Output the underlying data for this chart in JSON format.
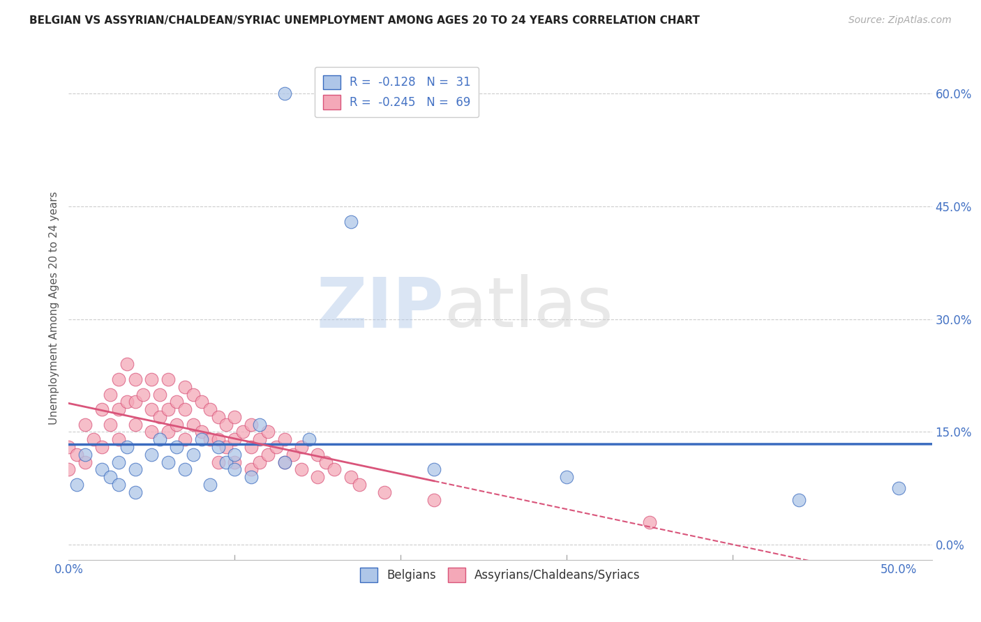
{
  "title": "BELGIAN VS ASSYRIAN/CHALDEAN/SYRIAC UNEMPLOYMENT AMONG AGES 20 TO 24 YEARS CORRELATION CHART",
  "source": "Source: ZipAtlas.com",
  "ylabel": "Unemployment Among Ages 20 to 24 years",
  "legend_labels": [
    "Belgians",
    "Assyrians/Chaldeans/Syriacs"
  ],
  "r_belgian": -0.128,
  "n_belgian": 31,
  "r_assyrian": -0.245,
  "n_assyrian": 69,
  "belgian_color": "#aec6e8",
  "assyrian_color": "#f4a8b8",
  "trend_belgian_color": "#3a6bbf",
  "trend_assyrian_color": "#d9547a",
  "background_color": "#ffffff",
  "xlim": [
    0.0,
    0.52
  ],
  "ylim": [
    -0.02,
    0.65
  ],
  "xticks": [
    0.0,
    0.5
  ],
  "xtick_labels": [
    "0.0%",
    "50.0%"
  ],
  "yticks": [
    0.0,
    0.15,
    0.3,
    0.45,
    0.6
  ],
  "ytick_labels": [
    "0.0%",
    "15.0%",
    "30.0%",
    "45.0%",
    "60.0%"
  ],
  "belgian_x": [
    0.005,
    0.01,
    0.02,
    0.025,
    0.03,
    0.03,
    0.035,
    0.04,
    0.04,
    0.05,
    0.055,
    0.06,
    0.065,
    0.07,
    0.075,
    0.08,
    0.085,
    0.09,
    0.095,
    0.1,
    0.1,
    0.11,
    0.115,
    0.13,
    0.13,
    0.145,
    0.17,
    0.22,
    0.3,
    0.44,
    0.5
  ],
  "belgian_y": [
    0.08,
    0.12,
    0.1,
    0.09,
    0.11,
    0.08,
    0.13,
    0.1,
    0.07,
    0.12,
    0.14,
    0.11,
    0.13,
    0.1,
    0.12,
    0.14,
    0.08,
    0.13,
    0.11,
    0.12,
    0.1,
    0.09,
    0.16,
    0.6,
    0.11,
    0.14,
    0.43,
    0.1,
    0.09,
    0.06,
    0.075
  ],
  "assyrian_x": [
    0.0,
    0.0,
    0.005,
    0.01,
    0.01,
    0.015,
    0.02,
    0.02,
    0.025,
    0.025,
    0.03,
    0.03,
    0.03,
    0.035,
    0.035,
    0.04,
    0.04,
    0.04,
    0.045,
    0.05,
    0.05,
    0.05,
    0.055,
    0.055,
    0.06,
    0.06,
    0.06,
    0.065,
    0.065,
    0.07,
    0.07,
    0.07,
    0.075,
    0.075,
    0.08,
    0.08,
    0.085,
    0.085,
    0.09,
    0.09,
    0.09,
    0.095,
    0.095,
    0.1,
    0.1,
    0.1,
    0.105,
    0.11,
    0.11,
    0.11,
    0.115,
    0.115,
    0.12,
    0.12,
    0.125,
    0.13,
    0.13,
    0.135,
    0.14,
    0.14,
    0.15,
    0.15,
    0.155,
    0.16,
    0.17,
    0.175,
    0.19,
    0.22,
    0.35
  ],
  "assyrian_y": [
    0.13,
    0.1,
    0.12,
    0.16,
    0.11,
    0.14,
    0.18,
    0.13,
    0.2,
    0.16,
    0.22,
    0.18,
    0.14,
    0.24,
    0.19,
    0.22,
    0.19,
    0.16,
    0.2,
    0.22,
    0.18,
    0.15,
    0.2,
    0.17,
    0.22,
    0.18,
    0.15,
    0.19,
    0.16,
    0.21,
    0.18,
    0.14,
    0.2,
    0.16,
    0.19,
    0.15,
    0.18,
    0.14,
    0.17,
    0.14,
    0.11,
    0.16,
    0.13,
    0.17,
    0.14,
    0.11,
    0.15,
    0.16,
    0.13,
    0.1,
    0.14,
    0.11,
    0.15,
    0.12,
    0.13,
    0.14,
    0.11,
    0.12,
    0.13,
    0.1,
    0.12,
    0.09,
    0.11,
    0.1,
    0.09,
    0.08,
    0.07,
    0.06,
    0.03
  ]
}
